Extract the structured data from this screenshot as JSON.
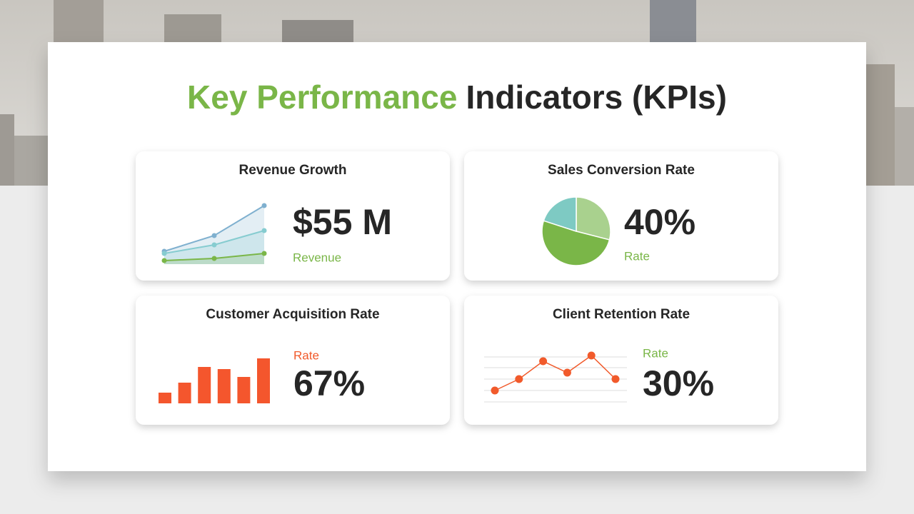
{
  "title": {
    "highlight": "Key Performance",
    "rest": "Indicators (KPIs)"
  },
  "cards": [
    {
      "title": "Revenue Growth",
      "value": "$55 M",
      "label": "Revenue",
      "label_color": "#7ab648",
      "chart": {
        "type": "area-line",
        "series": [
          {
            "color": "#7fb0cf",
            "values": [
              18,
              40,
              82
            ]
          },
          {
            "color": "#86ccd0",
            "values": [
              15,
              27,
              47
            ]
          },
          {
            "color": "#7ab648",
            "values": [
              5,
              8,
              15
            ]
          }
        ]
      }
    },
    {
      "title": "Sales Conversion Rate",
      "value": "40%",
      "label": "Rate",
      "label_color": "#7ab648",
      "chart": {
        "type": "pie",
        "colors": [
          "#a9d18e",
          "#7ab648",
          "#7ecac3"
        ],
        "values": [
          29,
          51,
          20
        ]
      }
    },
    {
      "title": "Customer Acquisition Rate",
      "value": "67%",
      "label": "Rate",
      "label_color": "#f15a2b",
      "chart": {
        "type": "bar",
        "color": "#f4562d",
        "values": [
          15,
          29,
          51,
          48,
          37,
          63
        ]
      }
    },
    {
      "title": "Client Retention Rate",
      "value": "30%",
      "label": "Rate",
      "label_color": "#7ab648",
      "chart": {
        "type": "dot-line",
        "color": "#f15a2b",
        "values": [
          18,
          34,
          59,
          43,
          67,
          34
        ]
      }
    }
  ]
}
